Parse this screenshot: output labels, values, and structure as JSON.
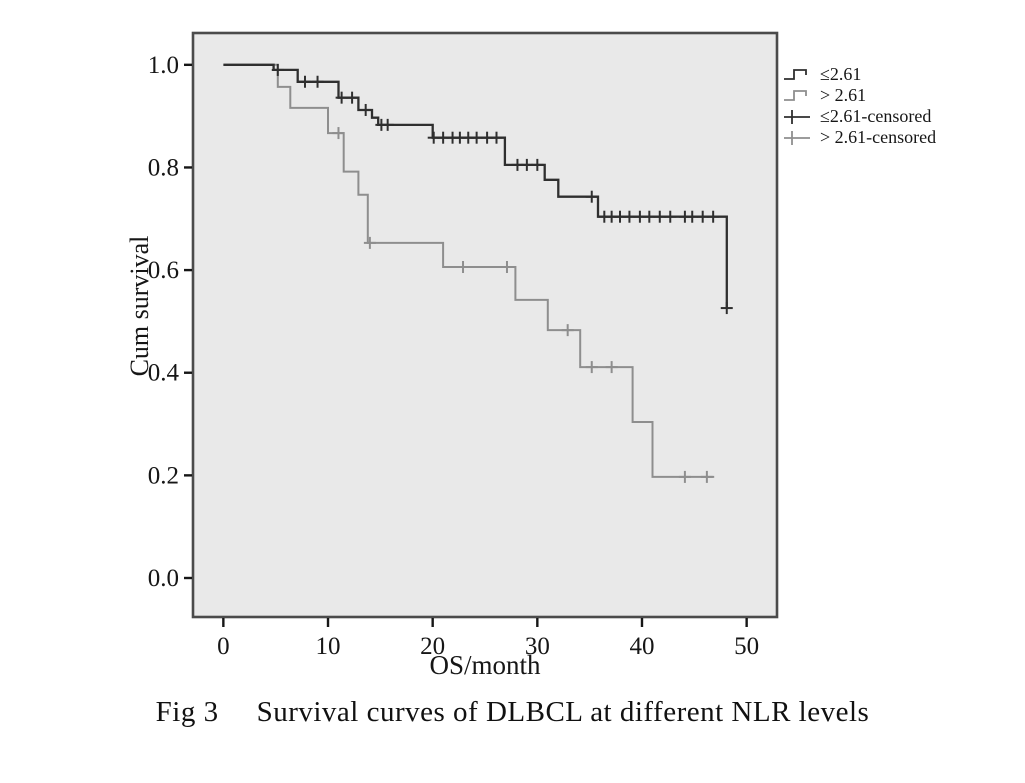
{
  "figure": {
    "caption_number": "Fig 3",
    "caption_text": "Survival curves of DLBCL at different NLR levels"
  },
  "colors": {
    "group_le261": "#2f2f2f",
    "group_gt261": "#8e8e8e",
    "plot_bg": "#e9e9e9",
    "frame": "#4b4b4b",
    "text": "#161616"
  },
  "chart_data": {
    "type": "line",
    "subtype": "kaplan-meier-step",
    "title": "",
    "xlabel": "OS/month",
    "ylabel": "Cum survival",
    "xlim": [
      -2.9,
      52.9
    ],
    "ylim": [
      -0.076,
      1.062
    ],
    "xticks": [
      0,
      10,
      20,
      30,
      40,
      50
    ],
    "xtick_labels": [
      "0",
      "10",
      "20",
      "30",
      "40",
      "50"
    ],
    "yticks": [
      0.0,
      0.2,
      0.4,
      0.6,
      0.8,
      1.0
    ],
    "ytick_labels": [
      "0.0",
      "0.2",
      "0.4",
      "0.6",
      "0.8",
      "1.0"
    ],
    "grid": false,
    "legend_position": "top-right-outside",
    "series": [
      {
        "name": "≤2.61",
        "color": "#2f2f2f",
        "steps": [
          [
            0,
            1.0
          ],
          [
            4.8,
            0.99
          ],
          [
            7.1,
            0.967
          ],
          [
            11.0,
            0.936
          ],
          [
            12.9,
            0.912
          ],
          [
            14.2,
            0.897
          ],
          [
            14.8,
            0.883
          ],
          [
            20.0,
            0.858
          ],
          [
            26.9,
            0.805
          ],
          [
            30.7,
            0.776
          ],
          [
            32.0,
            0.743
          ],
          [
            35.8,
            0.704
          ],
          [
            48.1,
            0.526
          ]
        ],
        "end": 48.1,
        "censored": [
          [
            5.2,
            0.99
          ],
          [
            7.8,
            0.967
          ],
          [
            9.0,
            0.967
          ],
          [
            11.3,
            0.936
          ],
          [
            12.3,
            0.936
          ],
          [
            13.6,
            0.912
          ],
          [
            15.1,
            0.883
          ],
          [
            15.7,
            0.883
          ],
          [
            20.1,
            0.858
          ],
          [
            21.0,
            0.858
          ],
          [
            21.9,
            0.858
          ],
          [
            22.6,
            0.858
          ],
          [
            23.4,
            0.858
          ],
          [
            24.2,
            0.858
          ],
          [
            25.2,
            0.858
          ],
          [
            26.1,
            0.858
          ],
          [
            28.1,
            0.805
          ],
          [
            29.0,
            0.805
          ],
          [
            30.0,
            0.805
          ],
          [
            35.2,
            0.743
          ],
          [
            36.4,
            0.704
          ],
          [
            37.1,
            0.704
          ],
          [
            37.9,
            0.704
          ],
          [
            38.8,
            0.704
          ],
          [
            39.8,
            0.704
          ],
          [
            40.7,
            0.704
          ],
          [
            41.7,
            0.704
          ],
          [
            42.7,
            0.704
          ],
          [
            44.1,
            0.704
          ],
          [
            44.8,
            0.704
          ],
          [
            45.8,
            0.704
          ],
          [
            46.8,
            0.704
          ],
          [
            48.1,
            0.526
          ]
        ]
      },
      {
        "name": "> 2.61",
        "color": "#8e8e8e",
        "steps": [
          [
            0,
            1.0
          ],
          [
            5.2,
            0.957
          ],
          [
            6.4,
            0.916
          ],
          [
            10.0,
            0.867
          ],
          [
            11.5,
            0.792
          ],
          [
            12.9,
            0.747
          ],
          [
            13.8,
            0.653
          ],
          [
            21.0,
            0.606
          ],
          [
            27.9,
            0.542
          ],
          [
            31.0,
            0.483
          ],
          [
            34.1,
            0.411
          ],
          [
            39.1,
            0.304
          ],
          [
            41.0,
            0.197
          ]
        ],
        "end": 46.9,
        "censored": [
          [
            11.0,
            0.867
          ],
          [
            14.0,
            0.653
          ],
          [
            22.9,
            0.606
          ],
          [
            27.1,
            0.606
          ],
          [
            32.9,
            0.483
          ],
          [
            35.2,
            0.411
          ],
          [
            37.1,
            0.411
          ],
          [
            44.1,
            0.197
          ],
          [
            46.2,
            0.197
          ]
        ]
      }
    ],
    "legend": [
      {
        "label": "≤2.61",
        "type": "step",
        "color": "#2f2f2f"
      },
      {
        "label": "> 2.61",
        "type": "step",
        "color": "#8e8e8e"
      },
      {
        "label": "≤2.61-censored",
        "type": "plus",
        "color": "#2f2f2f"
      },
      {
        "label": "> 2.61-censored",
        "type": "plus",
        "color": "#8e8e8e"
      }
    ]
  }
}
